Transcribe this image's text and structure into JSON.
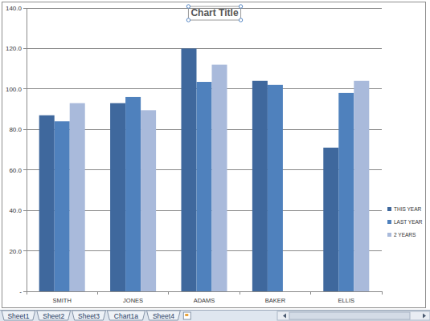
{
  "chart_data": {
    "type": "bar",
    "title": "Chart Title",
    "categories": [
      "SMITH",
      "JONES",
      "ADAMS",
      "BAKER",
      "ELLIS"
    ],
    "series": [
      {
        "name": "THIS YEAR",
        "color": "#3f689d",
        "values": [
          87,
          93,
          120,
          104,
          71
        ]
      },
      {
        "name": "LAST YEAR",
        "color": "#4f81bd",
        "values": [
          84,
          96,
          103.5,
          102,
          98
        ]
      },
      {
        "name": "2 YEARS",
        "color": "#a9badb",
        "values": [
          93,
          89.5,
          112,
          null,
          104
        ]
      }
    ],
    "ylim": [
      0,
      140
    ],
    "yticks": [
      {
        "value": 0,
        "label": "-"
      },
      {
        "value": 20,
        "label": "20.0"
      },
      {
        "value": 40,
        "label": "40.0"
      },
      {
        "value": 60,
        "label": "60.0"
      },
      {
        "value": 80,
        "label": "80.0"
      },
      {
        "value": 100,
        "label": "100.0"
      },
      {
        "value": 120,
        "label": "120.0"
      },
      {
        "value": 140,
        "label": "140.0"
      }
    ],
    "grid": true,
    "legend": "right"
  },
  "sheet_tabs": [
    "Sheet1",
    "Sheet2",
    "Sheet3",
    "Chart1a",
    "Sheet4"
  ]
}
